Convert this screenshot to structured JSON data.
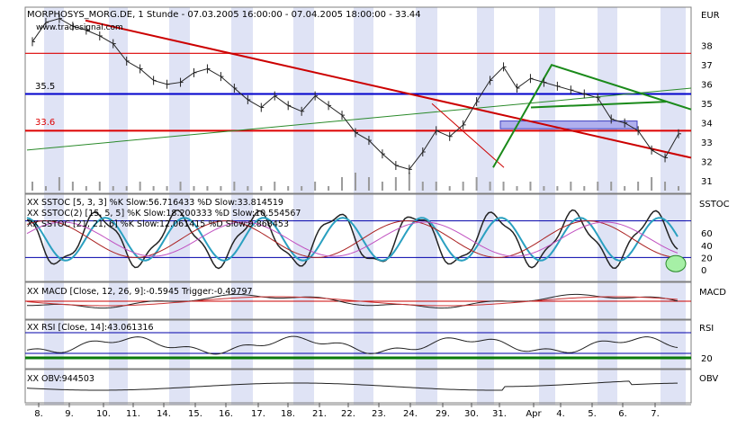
{
  "chart_data": {
    "type": "line",
    "title": "MORPHOSYS_MORG.DE, 1 Stunde - 07.03.2005 16:00:00 - 07.04.2005 18:00:00 - 33.44",
    "watermark": "www.tradesignal.com",
    "currency_label": "EUR",
    "x_ticks": [
      "8.",
      "9.",
      "10.",
      "11.",
      "14.",
      "15.",
      "16.",
      "17.",
      "18.",
      "21.",
      "22.",
      "23.",
      "24.",
      "29.",
      "30.",
      "31.",
      "Apr",
      "4.",
      "5.",
      "6.",
      "7."
    ],
    "price_panel": {
      "ylim": [
        30.5,
        39.8
      ],
      "y_ticks": [
        31,
        32,
        33,
        34,
        35,
        36,
        37,
        38
      ],
      "level_lines": [
        {
          "label": "35.5",
          "value": 35.5,
          "color": "#0000cc"
        },
        {
          "label": "33.6",
          "value": 33.6,
          "color": "#dd0000"
        },
        {
          "label": "",
          "value": 37.6,
          "color": "#dd0000"
        }
      ],
      "close_path": [
        [
          0,
          38.2
        ],
        [
          1,
          39.2
        ],
        [
          2,
          39.4
        ],
        [
          3,
          39.0
        ],
        [
          4,
          38.8
        ],
        [
          5,
          38.5
        ],
        [
          6,
          38.1
        ],
        [
          7,
          37.2
        ],
        [
          8,
          36.8
        ],
        [
          9,
          36.2
        ],
        [
          10,
          36.0
        ],
        [
          11,
          36.1
        ],
        [
          12,
          36.6
        ],
        [
          13,
          36.8
        ],
        [
          14,
          36.4
        ],
        [
          15,
          35.8
        ],
        [
          16,
          35.2
        ],
        [
          17,
          34.8
        ],
        [
          18,
          35.4
        ],
        [
          19,
          34.9
        ],
        [
          20,
          34.6
        ],
        [
          21,
          35.4
        ],
        [
          22,
          34.9
        ],
        [
          23,
          34.4
        ],
        [
          24,
          33.5
        ],
        [
          25,
          33.1
        ],
        [
          26,
          32.4
        ],
        [
          27,
          31.8
        ],
        [
          28,
          31.6
        ],
        [
          29,
          32.5
        ],
        [
          30,
          33.6
        ],
        [
          31,
          33.3
        ],
        [
          32,
          33.9
        ],
        [
          33,
          35.1
        ],
        [
          34,
          36.2
        ],
        [
          35,
          36.9
        ],
        [
          36,
          35.8
        ],
        [
          37,
          36.3
        ],
        [
          38,
          36.1
        ],
        [
          39,
          35.9
        ],
        [
          40,
          35.7
        ],
        [
          41,
          35.5
        ],
        [
          42,
          35.3
        ],
        [
          43,
          34.2
        ],
        [
          44,
          34.0
        ],
        [
          45,
          33.6
        ],
        [
          46,
          32.6
        ],
        [
          47,
          32.2
        ],
        [
          48,
          33.44
        ]
      ],
      "volume": [
        2,
        1,
        3,
        2,
        1,
        2,
        1,
        1,
        2,
        1,
        1,
        2,
        1,
        1,
        1,
        2,
        1,
        1,
        2,
        1,
        1,
        2,
        1,
        3,
        4,
        3,
        2,
        3,
        4,
        2,
        2,
        1,
        2,
        3,
        2,
        2,
        1,
        2,
        1,
        1,
        2,
        1,
        2,
        2,
        1,
        2,
        3,
        2,
        1
      ]
    },
    "indicators": [
      {
        "name": "SSTOC",
        "legend": [
          "XX SSTOC [5, 3, 3] %K Slow:56.716433 %D Slow:33.814519",
          "XX SSTOC(2) [15, 5, 5] %K Slow:18.200333 %D Slow:10.554567",
          "XX SSTOC [21, 21, 6] %K Slow:12.061415 %D Slow:9.868453"
        ],
        "y_ticks": [
          0,
          20,
          40,
          60
        ],
        "current_k": 56.716433
      },
      {
        "name": "MACD",
        "legend": [
          "XX MACD [Close, 12, 26, 9]:-0.5945 Trigger:-0.49797"
        ],
        "value": -0.5945,
        "trigger": -0.49797
      },
      {
        "name": "RSI",
        "legend": [
          "XX RSI [Close, 14]:43.061316"
        ],
        "y_ticks": [
          20
        ],
        "value": 43.061316
      },
      {
        "name": "OBV",
        "legend": [
          "XX OBV:944503"
        ],
        "value": 944503
      }
    ]
  }
}
